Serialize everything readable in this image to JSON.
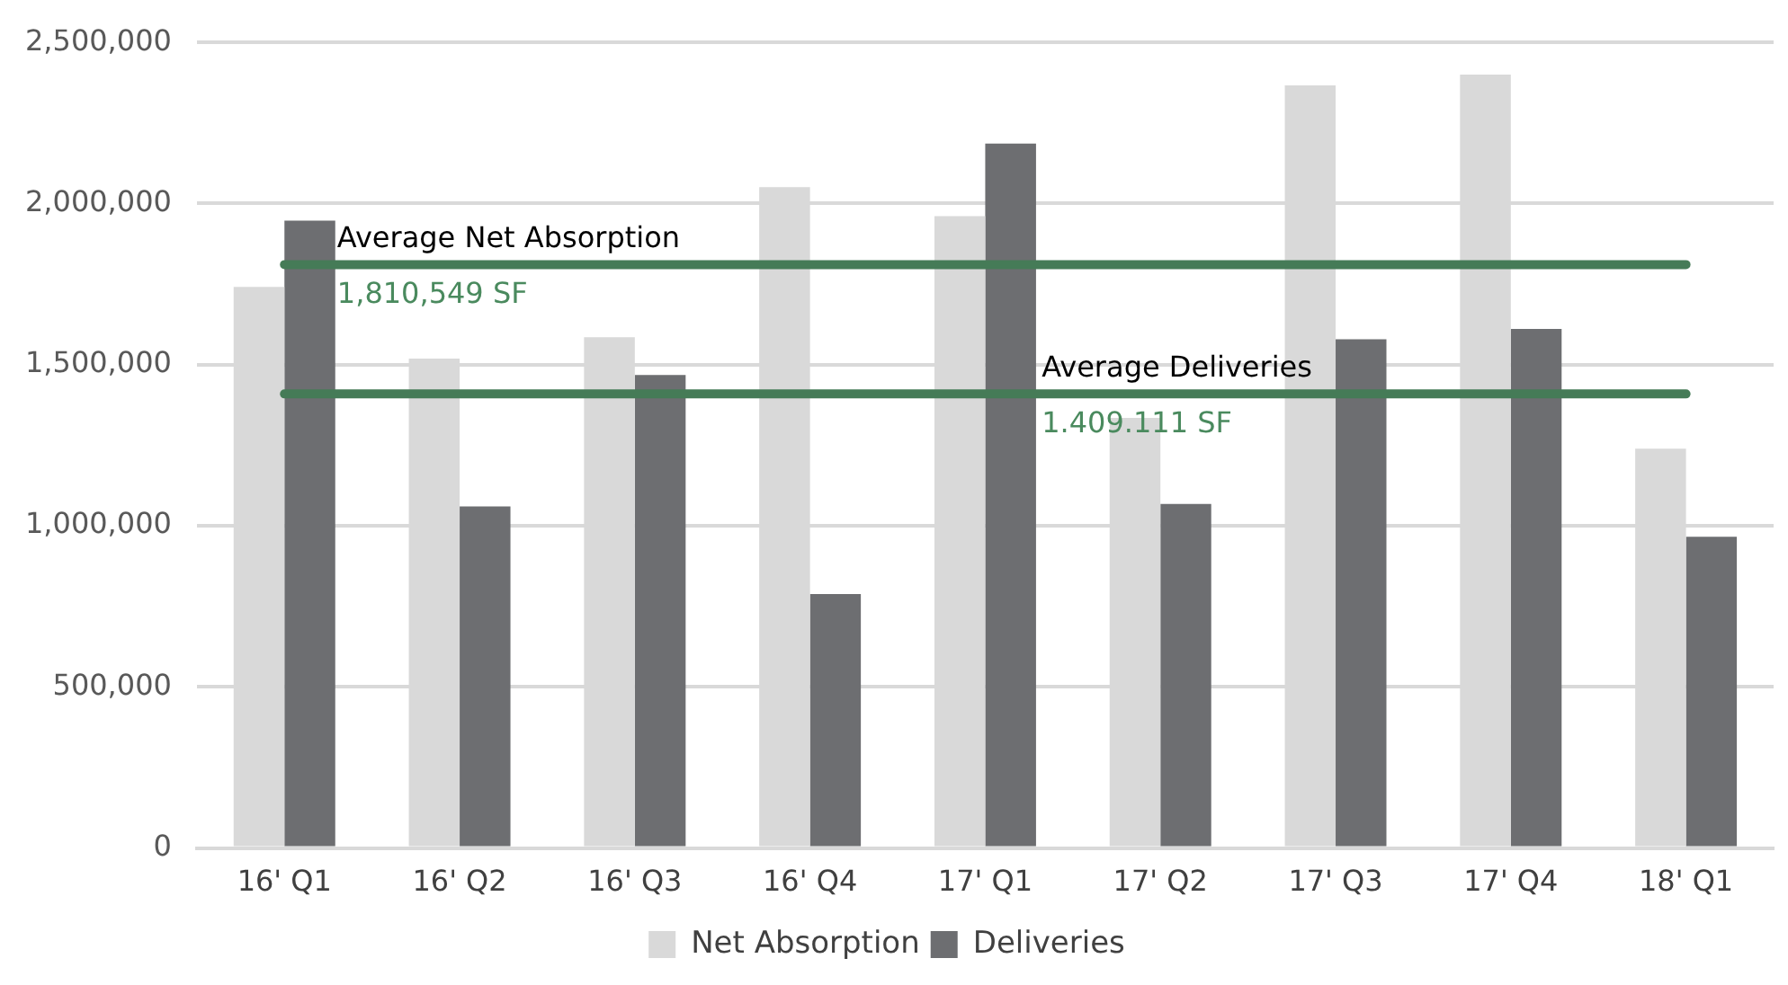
{
  "chart_data": {
    "type": "bar",
    "categories": [
      "16' Q1",
      "16' Q2",
      "16' Q3",
      "16' Q4",
      "17' Q1",
      "17' Q2",
      "17' Q3",
      "17' Q4",
      "18' Q1"
    ],
    "series": [
      {
        "name": "Net Absorption",
        "color": "#d9d9d9",
        "values": [
          1741000,
          1519000,
          1585000,
          2051000,
          1961000,
          1335000,
          2367000,
          2400000,
          1239000
        ]
      },
      {
        "name": "Deliveries",
        "color": "#6d6e71",
        "values": [
          1947000,
          1060000,
          1468000,
          788000,
          2186000,
          1068000,
          1579000,
          1611000,
          966000
        ]
      }
    ],
    "ylim": [
      0,
      2500000
    ],
    "yticks": [
      {
        "value": 0,
        "label": "0"
      },
      {
        "value": 500000,
        "label": "500,000"
      },
      {
        "value": 1000000,
        "label": "1,000,000"
      },
      {
        "value": 1500000,
        "label": "1,500,000"
      },
      {
        "value": 2000000,
        "label": "2,000,000"
      },
      {
        "value": 2500000,
        "label": "2,500,000"
      }
    ],
    "ref_lines": [
      {
        "axis": "y",
        "value": 1810549,
        "label": "Average Net Absorption",
        "color": "#457b57"
      },
      {
        "axis": "y",
        "value": 1409111,
        "label": "Average Deliveries",
        "color": "#457b57"
      }
    ],
    "annotations": [
      {
        "text": "1,810,549 SF",
        "x": "16' Q1",
        "y": 1810549
      },
      {
        "text": "1.409.111 SF",
        "x": "17' Q2",
        "y": 1409111
      }
    ],
    "grid": "y",
    "legend": "bottom"
  }
}
